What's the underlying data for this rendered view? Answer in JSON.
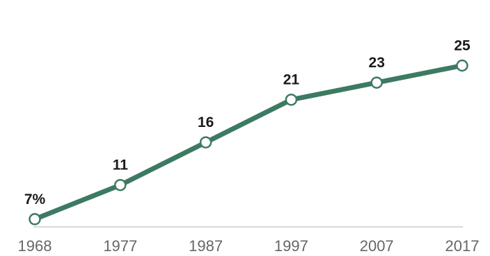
{
  "chart_data": {
    "type": "line",
    "x": [
      "1968",
      "1977",
      "1987",
      "1997",
      "2007",
      "2017"
    ],
    "values": [
      7,
      11,
      16,
      21,
      23,
      25
    ],
    "data_labels": [
      "7%",
      "11",
      "16",
      "21",
      "23",
      "25"
    ],
    "xtick_labels": [
      "1968",
      "1977",
      "1987",
      "1997",
      "2007",
      "2017"
    ],
    "ylim": [
      0,
      30
    ],
    "grid": false,
    "legend": "none",
    "colors": {
      "line": "#3d7a62",
      "marker_fill": "#ffffff",
      "axis": "#cccccc"
    }
  }
}
